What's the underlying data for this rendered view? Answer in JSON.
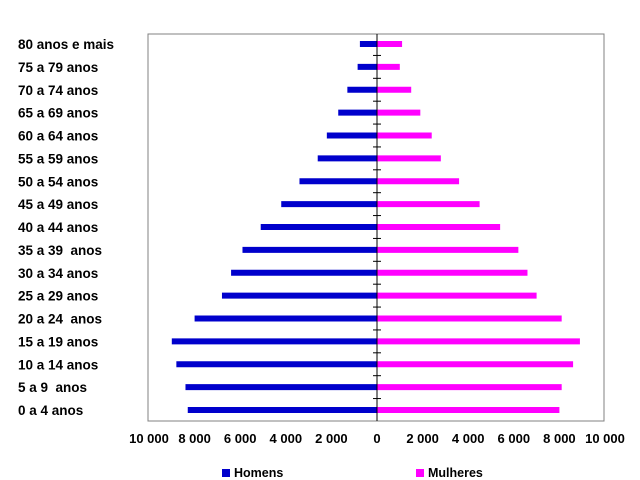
{
  "chart_data": {
    "type": "bar",
    "orientation": "horizontal-diverging",
    "categories": [
      "0 a 4 anos",
      "5 a 9  anos",
      "10 a 14 anos",
      "15 a 19 anos",
      "20 a 24  anos",
      "25 a 29 anos",
      "30 a 34 anos",
      "35 a 39  anos",
      "40 a 44 anos",
      "45 a 49 anos",
      "50 a 54 anos",
      "55 a 59 anos",
      "60 a 64 anos",
      "65 a 69 anos",
      "70 a 74 anos",
      "75 a 79 anos",
      "80 anos e mais"
    ],
    "series": [
      {
        "name": "Homens",
        "color": "#0000cc",
        "values": [
          8300,
          8400,
          8800,
          9000,
          8000,
          6800,
          6400,
          5900,
          5100,
          4200,
          3400,
          2600,
          2200,
          1700,
          1300,
          850,
          750
        ]
      },
      {
        "name": "Mulheres",
        "color": "#ff00ff",
        "values": [
          8000,
          8100,
          8600,
          8900,
          8100,
          7000,
          6600,
          6200,
          5400,
          4500,
          3600,
          2800,
          2400,
          1900,
          1500,
          1000,
          1100
        ]
      }
    ],
    "x_ticks": [
      "10 000",
      "8 000",
      "6 000",
      "4 000",
      "2 000",
      "0",
      "2 000",
      "4 000",
      "6 000",
      "8 000",
      "10 000"
    ],
    "xlim": [
      -10000,
      10000
    ],
    "legend_position": "bottom",
    "title": "",
    "xlabel": "",
    "ylabel": ""
  }
}
